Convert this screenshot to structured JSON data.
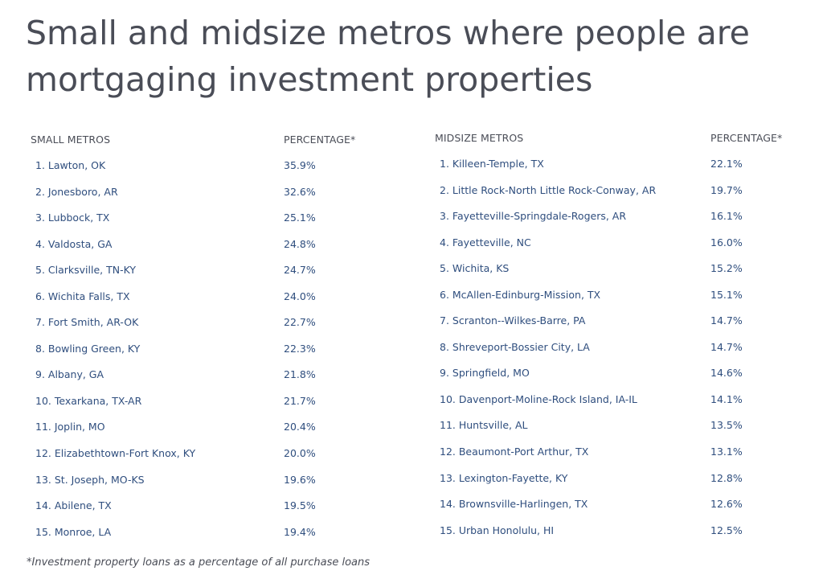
{
  "title": "Small and midsize metros where people are mortgaging investment properties",
  "footnote": "*Investment property loans as a percentage of all purchase loans",
  "chart_data": [
    {
      "type": "table",
      "columns": [
        "SMALL METROS",
        "PERCENTAGE*"
      ],
      "rows": [
        [
          "1. Lawton, OK",
          "35.9%"
        ],
        [
          "2. Jonesboro, AR",
          "32.6%"
        ],
        [
          "3. Lubbock, TX",
          "25.1%"
        ],
        [
          "4. Valdosta, GA",
          "24.8%"
        ],
        [
          "5. Clarksville, TN-KY",
          "24.7%"
        ],
        [
          "6. Wichita Falls, TX",
          "24.0%"
        ],
        [
          "7. Fort Smith, AR-OK",
          "22.7%"
        ],
        [
          "8. Bowling Green, KY",
          "22.3%"
        ],
        [
          "9. Albany, GA",
          "21.8%"
        ],
        [
          "10. Texarkana, TX-AR",
          "21.7%"
        ],
        [
          "11. Joplin, MO",
          "20.4%"
        ],
        [
          "12. Elizabethtown-Fort Knox, KY",
          "20.0%"
        ],
        [
          "13. St. Joseph, MO-KS",
          "19.6%"
        ],
        [
          "14. Abilene, TX",
          "19.5%"
        ],
        [
          "15. Monroe, LA",
          "19.4%"
        ]
      ]
    },
    {
      "type": "table",
      "columns": [
        "MIDSIZE METROS",
        "PERCENTAGE*"
      ],
      "rows": [
        [
          "1. Killeen-Temple, TX",
          "22.1%"
        ],
        [
          "2. Little Rock-North Little Rock-Conway, AR",
          "19.7%"
        ],
        [
          "3. Fayetteville-Springdale-Rogers, AR",
          "16.1%"
        ],
        [
          "4. Fayetteville, NC",
          "16.0%"
        ],
        [
          "5. Wichita, KS",
          "15.2%"
        ],
        [
          "6. McAllen-Edinburg-Mission, TX",
          "15.1%"
        ],
        [
          "7. Scranton--Wilkes-Barre, PA",
          "14.7%"
        ],
        [
          "8. Shreveport-Bossier City, LA",
          "14.7%"
        ],
        [
          "9. Springfield, MO",
          "14.6%"
        ],
        [
          "10. Davenport-Moline-Rock Island, IA-IL",
          "14.1%"
        ],
        [
          "11. Huntsville, AL",
          "13.5%"
        ],
        [
          "12. Beaumont-Port Arthur, TX",
          "13.1%"
        ],
        [
          "13. Lexington-Fayette, KY",
          "12.8%"
        ],
        [
          "14. Brownsville-Harlingen, TX",
          "12.6%"
        ],
        [
          "15. Urban Honolulu, HI",
          "12.5%"
        ]
      ]
    }
  ]
}
